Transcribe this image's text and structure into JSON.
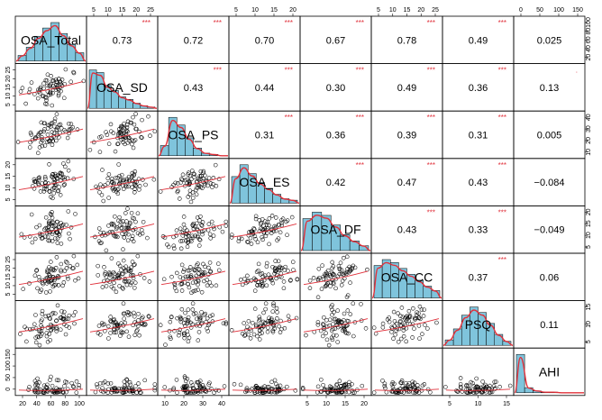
{
  "chart_data": {
    "type": "scatter-matrix",
    "variables": [
      "OSA_Total",
      "OSA_SD",
      "OSA_PS",
      "OSA_ES",
      "OSA_DF",
      "OSA_CC",
      "PSQ",
      "AHI"
    ],
    "correlations": [
      {
        "row": 0,
        "col": 1,
        "value": "0.73",
        "sig": "***"
      },
      {
        "row": 0,
        "col": 2,
        "value": "0.72",
        "sig": "***"
      },
      {
        "row": 0,
        "col": 3,
        "value": "0.70",
        "sig": "***"
      },
      {
        "row": 0,
        "col": 4,
        "value": "0.67",
        "sig": "***"
      },
      {
        "row": 0,
        "col": 5,
        "value": "0.78",
        "sig": "***"
      },
      {
        "row": 0,
        "col": 6,
        "value": "0.49",
        "sig": "***"
      },
      {
        "row": 0,
        "col": 7,
        "value": "0.025",
        "sig": ""
      },
      {
        "row": 1,
        "col": 2,
        "value": "0.43",
        "sig": "***"
      },
      {
        "row": 1,
        "col": 3,
        "value": "0.44",
        "sig": "***"
      },
      {
        "row": 1,
        "col": 4,
        "value": "0.30",
        "sig": "***"
      },
      {
        "row": 1,
        "col": 5,
        "value": "0.49",
        "sig": "***"
      },
      {
        "row": 1,
        "col": 6,
        "value": "0.36",
        "sig": "***"
      },
      {
        "row": 1,
        "col": 7,
        "value": "0.13",
        "sig": "."
      },
      {
        "row": 2,
        "col": 3,
        "value": "0.31",
        "sig": "***"
      },
      {
        "row": 2,
        "col": 4,
        "value": "0.36",
        "sig": "***"
      },
      {
        "row": 2,
        "col": 5,
        "value": "0.39",
        "sig": "***"
      },
      {
        "row": 2,
        "col": 6,
        "value": "0.31",
        "sig": "***"
      },
      {
        "row": 2,
        "col": 7,
        "value": "0.005",
        "sig": ""
      },
      {
        "row": 3,
        "col": 4,
        "value": "0.42",
        "sig": "***"
      },
      {
        "row": 3,
        "col": 5,
        "value": "0.47",
        "sig": "***"
      },
      {
        "row": 3,
        "col": 6,
        "value": "0.43",
        "sig": "***"
      },
      {
        "row": 3,
        "col": 7,
        "value": "−0.084",
        "sig": ""
      },
      {
        "row": 4,
        "col": 5,
        "value": "0.43",
        "sig": "***"
      },
      {
        "row": 4,
        "col": 6,
        "value": "0.33",
        "sig": "***"
      },
      {
        "row": 4,
        "col": 7,
        "value": "−0.049",
        "sig": ""
      },
      {
        "row": 5,
        "col": 6,
        "value": "0.37",
        "sig": "***"
      },
      {
        "row": 5,
        "col": 7,
        "value": "0.06",
        "sig": ""
      },
      {
        "row": 6,
        "col": 7,
        "value": "0.11",
        "sig": ""
      }
    ],
    "histograms": [
      {
        "range": [
          20,
          100
        ],
        "counts": [
          2,
          5,
          9,
          12,
          14,
          10,
          6,
          3
        ]
      },
      {
        "range": [
          0,
          27
        ],
        "counts": [
          30,
          28,
          18,
          14,
          9,
          7,
          4,
          2,
          1
        ]
      },
      {
        "range": [
          5,
          45
        ],
        "counts": [
          8,
          30,
          24,
          14,
          6,
          2,
          1,
          0
        ]
      },
      {
        "range": [
          2,
          22
        ],
        "counts": [
          18,
          26,
          20,
          14,
          10,
          6,
          3,
          2
        ]
      },
      {
        "range": [
          2,
          24
        ],
        "counts": [
          20,
          24,
          22,
          16,
          10,
          6,
          3
        ]
      },
      {
        "range": [
          2,
          28
        ],
        "counts": [
          22,
          26,
          24,
          20,
          16,
          12,
          8,
          5
        ]
      },
      {
        "range": [
          2,
          18
        ],
        "counts": [
          4,
          12,
          22,
          28,
          24,
          16,
          8,
          3
        ]
      },
      {
        "range": [
          0,
          150
        ],
        "counts": [
          60,
          8,
          3,
          1,
          1,
          0,
          0,
          0
        ]
      }
    ],
    "top_axes": [
      {
        "col": 1,
        "ticks": [
          "5",
          "10",
          "15",
          "20",
          "25"
        ]
      },
      {
        "col": 3,
        "ticks": [
          "5",
          "10",
          "15",
          "20"
        ]
      },
      {
        "col": 5,
        "ticks": [
          "5",
          "10",
          "15",
          "20",
          "25"
        ]
      },
      {
        "col": 7,
        "ticks": [
          "0",
          "50",
          "100",
          "150"
        ]
      }
    ],
    "right_axes": [
      {
        "row": 0,
        "ticks": [
          "20",
          "40",
          "60",
          "80",
          "100"
        ]
      },
      {
        "row": 2,
        "ticks": [
          "10",
          "20",
          "30",
          "40"
        ]
      },
      {
        "row": 4,
        "ticks": [
          "5",
          "10",
          "15",
          "20"
        ]
      },
      {
        "row": 6,
        "ticks": [
          "5",
          "10",
          "15"
        ]
      }
    ],
    "left_axes": [
      {
        "row": 1,
        "ticks": [
          "5",
          "10",
          "15",
          "20",
          "25"
        ]
      },
      {
        "row": 3,
        "ticks": [
          "5",
          "10",
          "15",
          "20"
        ]
      },
      {
        "row": 5,
        "ticks": [
          "5",
          "10",
          "15",
          "20",
          "25"
        ]
      },
      {
        "row": 7,
        "ticks": [
          "0",
          "50",
          "100",
          "150"
        ]
      }
    ],
    "bottom_axes": [
      {
        "col": 0,
        "ticks": [
          "20",
          "40",
          "60",
          "80",
          "100"
        ]
      },
      {
        "col": 2,
        "ticks": [
          "10",
          "20",
          "30",
          "40"
        ]
      },
      {
        "col": 4,
        "ticks": [
          "5",
          "10",
          "15",
          "20"
        ]
      },
      {
        "col": 6,
        "ticks": [
          "5",
          "10",
          "15"
        ]
      }
    ],
    "colors": {
      "histogram_fill": "#7fc4dc",
      "density_line": "#e0303a",
      "smoother": "#e0303a",
      "significance": "#e0303a",
      "points": "#000000"
    }
  }
}
